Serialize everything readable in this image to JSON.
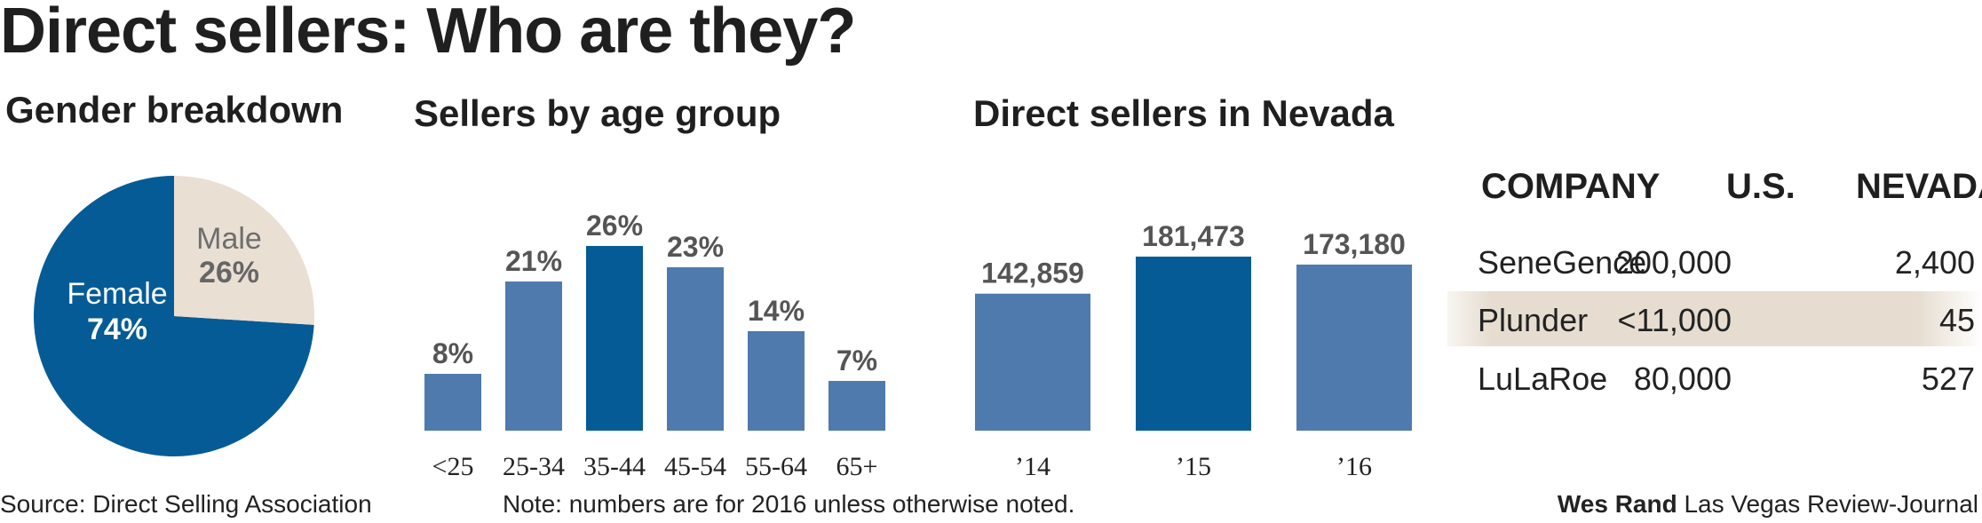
{
  "title": "Direct sellers: Who are they?",
  "colors": {
    "bar": "#4f7aad",
    "highlight": "#045b96",
    "male": "#eadfd3",
    "female": "#045b96",
    "band": "#e6ddd0"
  },
  "gender": {
    "heading": "Gender breakdown",
    "female_label": "Female",
    "female_pct": "74%",
    "male_label": "Male",
    "male_pct": "26%"
  },
  "age": {
    "heading": "Sellers by age group"
  },
  "nevada": {
    "heading": "Direct sellers in Nevada"
  },
  "chart_data": [
    {
      "type": "pie",
      "title": "Gender breakdown",
      "labels": [
        "Female",
        "Male"
      ],
      "values": [
        74,
        26
      ]
    },
    {
      "type": "bar",
      "title": "Sellers by age group",
      "categories": [
        "<25",
        "25-34",
        "35-44",
        "45-54",
        "55-64",
        "65+"
      ],
      "values": [
        8,
        21,
        26,
        23,
        14,
        7
      ],
      "value_labels": [
        "8%",
        "21%",
        "26%",
        "23%",
        "14%",
        "7%"
      ],
      "highlight_index": 2,
      "ylim": [
        0,
        30
      ]
    },
    {
      "type": "bar",
      "title": "Direct sellers in Nevada",
      "categories": [
        "’14",
        "’15",
        "’16"
      ],
      "values": [
        142859,
        181473,
        173180
      ],
      "value_labels": [
        "142,859",
        "181,473",
        "173,180"
      ],
      "highlight_index": 1,
      "ylim": [
        0,
        200000
      ]
    }
  ],
  "table": {
    "headers": [
      "COMPANY",
      "U.S.",
      "NEVADA"
    ],
    "rows": [
      {
        "company": "SeneGence",
        "us": "200,000",
        "nevada": "2,400"
      },
      {
        "company": "Plunder",
        "us": "<11,000",
        "nevada": "45"
      },
      {
        "company": "LuLaRoe",
        "us": "80,000",
        "nevada": "527"
      }
    ]
  },
  "footer": {
    "source": "Source: Direct Selling Association",
    "note": "Note: numbers are for 2016 unless otherwise noted.",
    "credit_name": "Wes Rand",
    "credit_org": "Las Vegas Review-Journal"
  }
}
